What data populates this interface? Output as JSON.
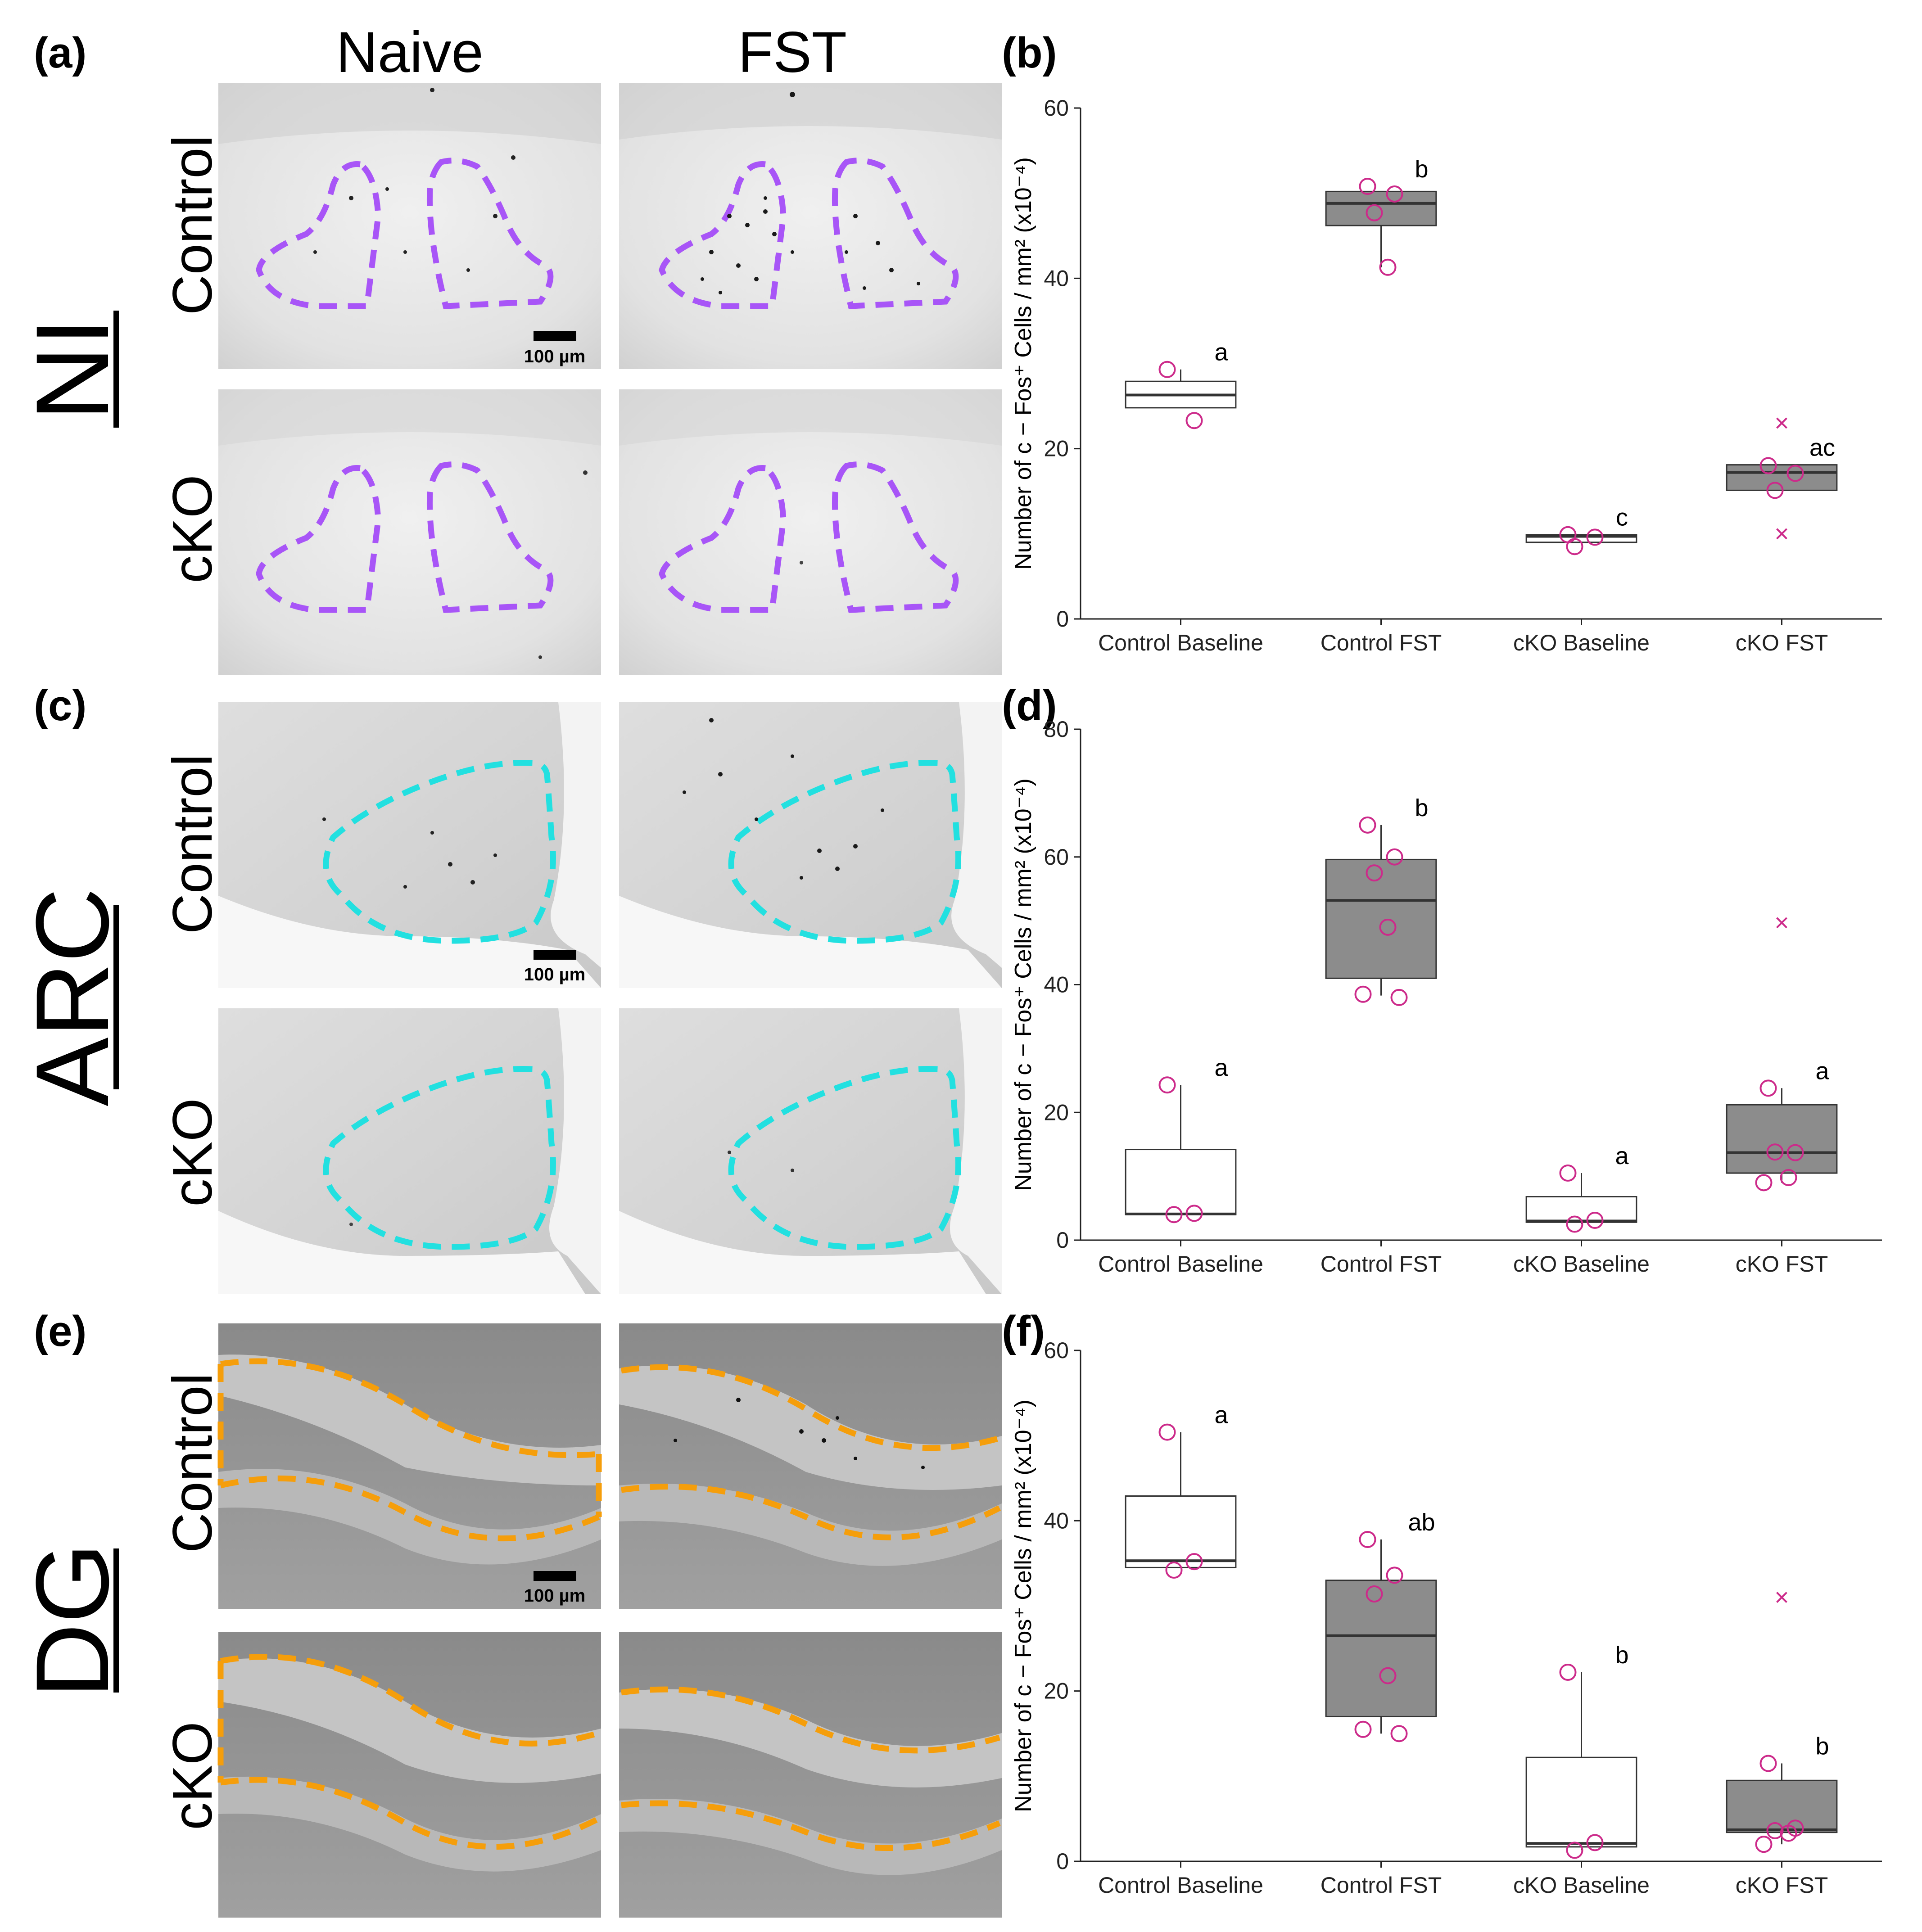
{
  "panel_letters": {
    "a": "(a)",
    "b": "(b)",
    "c": "(c)",
    "d": "(d)",
    "e": "(e)",
    "f": "(f)"
  },
  "column_headers": [
    "Naive",
    "FST"
  ],
  "row_labels": [
    "Control",
    "cKO"
  ],
  "regions": [
    "NI",
    "ARC",
    "DG"
  ],
  "scale_bar_label": "100 µm",
  "colors": {
    "ni_outline": "#a855f7",
    "arc_outline": "#22e0e0",
    "dg_outline": "#f59e0b",
    "point": "#cc2a8a",
    "box_dark": "#8c8c8c",
    "box_light": "#ffffff"
  },
  "chart_data": [
    {
      "type": "box",
      "panel": "b",
      "ylabel": "Number of c − Fos⁺ Cells / mm² (x10⁻⁴)",
      "categories": [
        "Control Baseline",
        "Control FST",
        "cKO Baseline",
        "cKO FST"
      ],
      "ylim": [
        0,
        60
      ],
      "yticks": [
        0,
        20,
        40,
        60
      ],
      "boxes": [
        {
          "q1": 24.8,
          "median": 26.3,
          "q3": 27.9,
          "whisker_low": 24.8,
          "whisker_high": 29.3,
          "filled": false,
          "points": [
            29.3,
            23.3
          ],
          "outliers": [],
          "sig": "a"
        },
        {
          "q1": 46.2,
          "median": 48.8,
          "q3": 50.2,
          "whisker_low": 41.3,
          "whisker_high": 50.2,
          "filled": true,
          "points": [
            50.8,
            49.9,
            47.7,
            41.3
          ],
          "outliers": [],
          "sig": "b"
        },
        {
          "q1": 9.0,
          "median": 9.7,
          "q3": 9.9,
          "whisker_low": 9.0,
          "whisker_high": 9.9,
          "filled": false,
          "points": [
            9.9,
            9.6,
            8.5
          ],
          "outliers": [],
          "sig": "c"
        },
        {
          "q1": 15.1,
          "median": 17.2,
          "q3": 18.1,
          "whisker_low": 15.1,
          "whisker_high": 18.1,
          "filled": true,
          "points": [
            18.0,
            17.1,
            15.1
          ],
          "outliers": [
            23.0,
            10.0
          ],
          "sig": "ac"
        }
      ]
    },
    {
      "type": "box",
      "panel": "d",
      "ylabel": "Number of c − Fos⁺ Cells / mm² (x10⁻⁴)",
      "categories": [
        "Control Baseline",
        "Control FST",
        "cKO Baseline",
        "cKO FST"
      ],
      "ylim": [
        0,
        80
      ],
      "yticks": [
        0,
        20,
        40,
        60,
        80
      ],
      "boxes": [
        {
          "q1": 4.0,
          "median": 4.1,
          "q3": 14.2,
          "whisker_low": 4.0,
          "whisker_high": 24.3,
          "filled": false,
          "points": [
            24.3,
            4.2,
            4.0
          ],
          "outliers": [],
          "sig": "a"
        },
        {
          "q1": 41.0,
          "median": 53.2,
          "q3": 59.6,
          "whisker_low": 38.3,
          "whisker_high": 65.0,
          "filled": true,
          "points": [
            65.0,
            60.0,
            57.5,
            49.0,
            38.5,
            38.0
          ],
          "outliers": [],
          "sig": "b"
        },
        {
          "q1": 2.8,
          "median": 3.0,
          "q3": 6.8,
          "whisker_low": 2.5,
          "whisker_high": 10.5,
          "filled": false,
          "points": [
            10.5,
            3.1,
            2.5
          ],
          "outliers": [],
          "sig": "a"
        },
        {
          "q1": 10.5,
          "median": 13.7,
          "q3": 21.2,
          "whisker_low": 9.0,
          "whisker_high": 23.8,
          "filled": true,
          "points": [
            23.8,
            13.7,
            13.8,
            9.8,
            9.0
          ],
          "outliers": [
            49.7
          ],
          "sig": "a"
        }
      ]
    },
    {
      "type": "box",
      "panel": "f",
      "ylabel": "Number of c − Fos⁺ Cells / mm² (x10⁻⁴)",
      "categories": [
        "Control Baseline",
        "Control FST",
        "cKO Baseline",
        "cKO FST"
      ],
      "ylim": [
        0,
        60
      ],
      "yticks": [
        0,
        20,
        40,
        60
      ],
      "boxes": [
        {
          "q1": 34.5,
          "median": 35.3,
          "q3": 42.9,
          "whisker_low": 34.5,
          "whisker_high": 50.4,
          "filled": false,
          "points": [
            50.4,
            35.2,
            34.2
          ],
          "outliers": [],
          "sig": "a"
        },
        {
          "q1": 17.0,
          "median": 26.5,
          "q3": 33.0,
          "whisker_low": 15.0,
          "whisker_high": 37.8,
          "filled": true,
          "points": [
            37.8,
            33.6,
            31.4,
            21.8,
            15.5,
            15.0
          ],
          "outliers": [],
          "sig": "ab"
        },
        {
          "q1": 1.7,
          "median": 2.1,
          "q3": 12.2,
          "whisker_low": 1.3,
          "whisker_high": 22.2,
          "filled": false,
          "points": [
            22.2,
            2.2,
            1.3
          ],
          "outliers": [],
          "sig": "b"
        },
        {
          "q1": 3.4,
          "median": 3.7,
          "q3": 9.5,
          "whisker_low": 2.0,
          "whisker_high": 11.5,
          "filled": true,
          "points": [
            11.5,
            3.9,
            3.6,
            3.3,
            2.0
          ],
          "outliers": [
            31.0
          ],
          "sig": "b"
        }
      ]
    }
  ]
}
